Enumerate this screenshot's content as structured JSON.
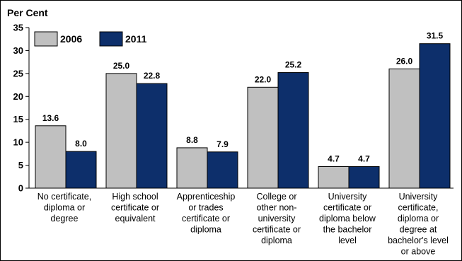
{
  "chart_data": {
    "type": "bar",
    "ylabel": "Per Cent",
    "ylim": [
      0,
      35
    ],
    "yticks": [
      0,
      5,
      10,
      15,
      20,
      25,
      30,
      35
    ],
    "grid": false,
    "legend_position": "top-left",
    "categories": [
      [
        "No certificate,",
        "diploma or",
        "degree"
      ],
      [
        "High school",
        "certificate or",
        "equivalent"
      ],
      [
        "Apprenticeship",
        "or trades",
        "certificate or",
        "diploma"
      ],
      [
        "College or",
        "other non-",
        "university",
        "certificate or",
        "diploma"
      ],
      [
        "University",
        "certificate or",
        "diploma below",
        "the bachelor",
        "level"
      ],
      [
        "University",
        "certificate,",
        "diploma or",
        "degree at",
        "bachelor's level",
        "or above"
      ]
    ],
    "series": [
      {
        "name": "2006",
        "color": "#c0c0c0",
        "values": [
          13.6,
          25.0,
          8.8,
          22.0,
          4.7,
          26.0
        ],
        "labels": [
          "13.6",
          "25.0",
          "8.8",
          "22.0",
          "4.7",
          "26.0"
        ]
      },
      {
        "name": "2011",
        "color": "#0d2f6b",
        "values": [
          8.0,
          22.8,
          7.9,
          25.2,
          4.7,
          31.5
        ],
        "labels": [
          "8.0",
          "22.8",
          "7.9",
          "25.2",
          "4.7",
          "31.5"
        ]
      }
    ]
  }
}
